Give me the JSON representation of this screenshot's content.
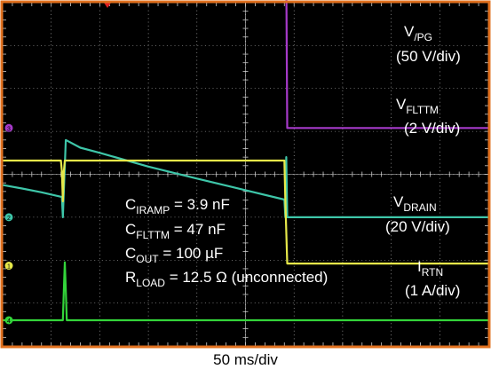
{
  "chart_data": {
    "type": "line",
    "x_unit": "ms",
    "x_range": [
      0,
      500
    ],
    "x_divisions": 10,
    "y_divisions": 8,
    "grid": true,
    "xlabel": "50 ms/div",
    "colors": {
      "background": "#000000",
      "border": "#e0701e",
      "grid": "#cfcfcf",
      "V_PG": "#a63ac9",
      "V_FLTTM": "#3ec6a9",
      "V_DRAIN": "#e6e84a",
      "I_RTN": "#33d43a"
    },
    "series": [
      {
        "id": "V_PG",
        "name": "V",
        "sub": "/PG",
        "scale": "(50 V/div)",
        "color": "#a63ac9",
        "ground_div": 5.08,
        "ground_marker": "3",
        "points": [
          [
            0,
            3.66
          ],
          [
            50,
            3.66
          ],
          [
            51,
            3.81
          ],
          [
            52,
            3.66
          ],
          [
            292,
            3.66
          ],
          [
            293,
            0.0
          ],
          [
            500,
            0.0
          ]
        ]
      },
      {
        "id": "V_FLTTM",
        "name": "V",
        "sub": "FLTTM",
        "scale": "(2 V/div)",
        "color": "#3ec6a9",
        "ground_div": 3.0,
        "ground_marker": "2",
        "points": [
          [
            0,
            0.75
          ],
          [
            20,
            0.67
          ],
          [
            40,
            0.58
          ],
          [
            61,
            0.47
          ],
          [
            62,
            0.0
          ],
          [
            65,
            1.8
          ],
          [
            80,
            1.62
          ],
          [
            100,
            1.5
          ],
          [
            150,
            1.18
          ],
          [
            200,
            0.9
          ],
          [
            250,
            0.63
          ],
          [
            290,
            0.41
          ],
          [
            291,
            0.0
          ],
          [
            292,
            1.4
          ],
          [
            293,
            0.0
          ],
          [
            500,
            0.0
          ]
        ]
      },
      {
        "id": "V_DRAIN",
        "name": "V",
        "sub": "DRAIN",
        "scale": "(20 V/div)",
        "color": "#e6e84a",
        "ground_div": 1.87,
        "ground_marker": "1",
        "points": [
          [
            0,
            2.45
          ],
          [
            60,
            2.45
          ],
          [
            61,
            2.2
          ],
          [
            62,
            1.5
          ],
          [
            63,
            2.2
          ],
          [
            64,
            2.45
          ],
          [
            290,
            2.45
          ],
          [
            291,
            1.5
          ],
          [
            293,
            0.05
          ],
          [
            500,
            0.05
          ]
        ]
      },
      {
        "id": "I_RTN",
        "name": "I",
        "sub": "RTN",
        "scale": "(1 A/div)",
        "color": "#33d43a",
        "ground_div": 0.6,
        "ground_marker": "4",
        "points": [
          [
            0,
            0.0
          ],
          [
            62,
            0.0
          ],
          [
            63,
            0.7
          ],
          [
            64,
            1.35
          ],
          [
            65,
            0.7
          ],
          [
            66,
            0.0
          ],
          [
            500,
            0.0
          ]
        ]
      }
    ],
    "annotations": [
      {
        "main": "C",
        "sub": "IRAMP",
        "rest": " = 3.9 nF"
      },
      {
        "main": "C",
        "sub": "FLTTM",
        "rest": " = 47 nF"
      },
      {
        "main": "C",
        "sub": "OUT",
        "rest": " = 100 µF"
      },
      {
        "main": "R",
        "sub": "LOAD",
        "rest": " = 12.5 Ω (unconnected)"
      }
    ]
  }
}
